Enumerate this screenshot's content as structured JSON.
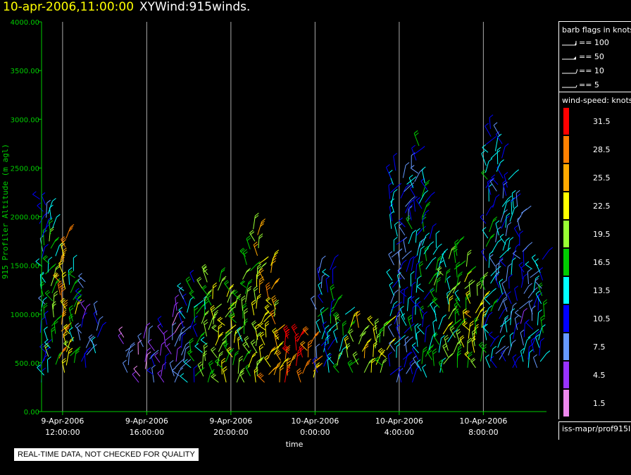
{
  "header": {
    "date": "10-apr-2006,11:00:00",
    "name": "XYWind:915winds."
  },
  "footnote": "REAL-TIME DATA, NOT CHECKED FOR QUALITY",
  "source": "iss-mapr/prof915I",
  "legend": {
    "flags_title": "barb flags in knots",
    "flags": [
      {
        "label": "== 100"
      },
      {
        "label": "== 50"
      },
      {
        "label": "== 10"
      },
      {
        "label": "== 5"
      }
    ],
    "speed_title": "wind-speed: knots",
    "speeds": [
      {
        "label": "31.5",
        "color": "#ff0000"
      },
      {
        "label": "28.5",
        "color": "#ff8000"
      },
      {
        "label": "25.5",
        "color": "#ffaa00"
      },
      {
        "label": "22.5",
        "color": "#ffff00"
      },
      {
        "label": "19.5",
        "color": "#99ff33"
      },
      {
        "label": "16.5",
        "color": "#00cc00"
      },
      {
        "label": "13.5",
        "color": "#00ffff"
      },
      {
        "label": "10.5",
        "color": "#0000ff"
      },
      {
        "label": "7.5",
        "color": "#6699ff"
      },
      {
        "label": "4.5",
        "color": "#9933ff"
      },
      {
        "label": "1.5",
        "color": "#ee88ee"
      }
    ]
  },
  "chart_data": {
    "type": "scatter",
    "xlabel": "time",
    "ylabel": "915 Profiler Altitude (m agl)",
    "ylim": [
      0,
      4000
    ],
    "yticks": [
      "0.00",
      "500.00",
      "1000.00",
      "1500.00",
      "2000.00",
      "2500.00",
      "3000.00",
      "3500.00",
      "4000.00"
    ],
    "xlim": [
      "2006-04-09T11:00",
      "2006-04-10T11:00"
    ],
    "xticks": [
      {
        "date": "9-Apr-2006",
        "time": "12:00:00"
      },
      {
        "date": "9-Apr-2006",
        "time": "16:00:00"
      },
      {
        "date": "9-Apr-2006",
        "time": "20:00:00"
      },
      {
        "date": "10-Apr-2006",
        "time": "0:00:00"
      },
      {
        "date": "10-Apr-2006",
        "time": "4:00:00"
      },
      {
        "date": "10-Apr-2006",
        "time": "8:00:00"
      }
    ],
    "grid_x": true,
    "axis_color": "#00cc00",
    "grid_color": "#aaaaaa",
    "profiles": [
      {
        "time": "2006-04-09T11:05",
        "alt_min": 300,
        "alt_max": 2200,
        "speed": 12
      },
      {
        "time": "2006-04-09T11:30",
        "alt_min": 400,
        "alt_max": 2100,
        "speed": 17
      },
      {
        "time": "2006-04-09T12:00",
        "alt_min": 400,
        "alt_max": 1800,
        "speed": 25
      },
      {
        "time": "2006-04-09T12:30",
        "alt_min": 500,
        "alt_max": 1500,
        "speed": 18
      },
      {
        "time": "2006-04-09T13:00",
        "alt_min": 450,
        "alt_max": 1400,
        "speed": 8
      },
      {
        "time": "2006-04-09T13:30",
        "alt_min": 600,
        "alt_max": 1050,
        "speed": 11
      },
      {
        "time": "2006-04-09T15:00",
        "alt_min": 400,
        "alt_max": 800,
        "speed": 5
      },
      {
        "time": "2006-04-09T15:45",
        "alt_min": 300,
        "alt_max": 800,
        "speed": 5
      },
      {
        "time": "2006-04-09T16:15",
        "alt_min": 300,
        "alt_max": 750,
        "speed": 7
      },
      {
        "time": "2006-04-09T16:45",
        "alt_min": 300,
        "alt_max": 900,
        "speed": 6
      },
      {
        "time": "2006-04-09T17:15",
        "alt_min": 300,
        "alt_max": 1100,
        "speed": 5
      },
      {
        "time": "2006-04-09T17:45",
        "alt_min": 300,
        "alt_max": 1250,
        "speed": 10
      },
      {
        "time": "2006-04-09T18:15",
        "alt_min": 300,
        "alt_max": 1350,
        "speed": 14
      },
      {
        "time": "2006-04-09T18:45",
        "alt_min": 300,
        "alt_max": 1450,
        "speed": 17
      },
      {
        "time": "2006-04-09T19:15",
        "alt_min": 300,
        "alt_max": 1400,
        "speed": 19
      },
      {
        "time": "2006-04-09T19:45",
        "alt_min": 300,
        "alt_max": 1300,
        "speed": 19
      },
      {
        "time": "2006-04-09T20:15",
        "alt_min": 300,
        "alt_max": 1200,
        "speed": 20
      },
      {
        "time": "2006-04-09T20:45",
        "alt_min": 300,
        "alt_max": 1700,
        "speed": 18
      },
      {
        "time": "2006-04-09T21:15",
        "alt_min": 300,
        "alt_max": 1900,
        "speed": 22
      },
      {
        "time": "2006-04-09T21:45",
        "alt_min": 300,
        "alt_max": 1550,
        "speed": 25
      },
      {
        "time": "2006-04-09T22:15",
        "alt_min": 300,
        "alt_max": 1100,
        "speed": 24
      },
      {
        "time": "2006-04-09T22:45",
        "alt_min": 300,
        "alt_max": 800,
        "speed": 28
      },
      {
        "time": "2006-04-09T23:15",
        "alt_min": 300,
        "alt_max": 800,
        "speed": 31
      },
      {
        "time": "2006-04-09T23:45",
        "alt_min": 350,
        "alt_max": 800,
        "speed": 26
      },
      {
        "time": "2006-04-10T00:15",
        "alt_min": 400,
        "alt_max": 1450,
        "speed": 12
      },
      {
        "time": "2006-04-10T00:45",
        "alt_min": 400,
        "alt_max": 1500,
        "speed": 13
      },
      {
        "time": "2006-04-10T01:15",
        "alt_min": 400,
        "alt_max": 1000,
        "speed": 16
      },
      {
        "time": "2006-04-10T01:45",
        "alt_min": 400,
        "alt_max": 900,
        "speed": 20
      },
      {
        "time": "2006-04-10T02:15",
        "alt_min": 400,
        "alt_max": 900,
        "speed": 22
      },
      {
        "time": "2006-04-10T02:45",
        "alt_min": 400,
        "alt_max": 900,
        "speed": 21
      },
      {
        "time": "2006-04-10T03:15",
        "alt_min": 400,
        "alt_max": 900,
        "speed": 19
      },
      {
        "time": "2006-04-10T03:45",
        "alt_min": 300,
        "alt_max": 2500,
        "speed": 11
      },
      {
        "time": "2006-04-10T04:15",
        "alt_min": 300,
        "alt_max": 2400,
        "speed": 10
      },
      {
        "time": "2006-04-10T04:45",
        "alt_min": 300,
        "alt_max": 2800,
        "speed": 12
      },
      {
        "time": "2006-04-10T05:15",
        "alt_min": 350,
        "alt_max": 2400,
        "speed": 14
      },
      {
        "time": "2006-04-10T05:45",
        "alt_min": 400,
        "alt_max": 1700,
        "speed": 16
      },
      {
        "time": "2006-04-10T06:15",
        "alt_min": 400,
        "alt_max": 1600,
        "speed": 18
      },
      {
        "time": "2006-04-10T06:45",
        "alt_min": 450,
        "alt_max": 1700,
        "speed": 17
      },
      {
        "time": "2006-04-10T07:15",
        "alt_min": 450,
        "alt_max": 1500,
        "speed": 21
      },
      {
        "time": "2006-04-10T07:45",
        "alt_min": 450,
        "alt_max": 1300,
        "speed": 20
      },
      {
        "time": "2006-04-10T08:15",
        "alt_min": 450,
        "alt_max": 2950,
        "speed": 13
      },
      {
        "time": "2006-04-10T08:45",
        "alt_min": 450,
        "alt_max": 2900,
        "speed": 10
      },
      {
        "time": "2006-04-10T09:15",
        "alt_min": 450,
        "alt_max": 2450,
        "speed": 11
      },
      {
        "time": "2006-04-10T09:45",
        "alt_min": 450,
        "alt_max": 2150,
        "speed": 9
      },
      {
        "time": "2006-04-10T10:15",
        "alt_min": 450,
        "alt_max": 1500,
        "speed": 10
      },
      {
        "time": "2006-04-10T10:45",
        "alt_min": 450,
        "alt_max": 1600,
        "speed": 12
      }
    ]
  }
}
